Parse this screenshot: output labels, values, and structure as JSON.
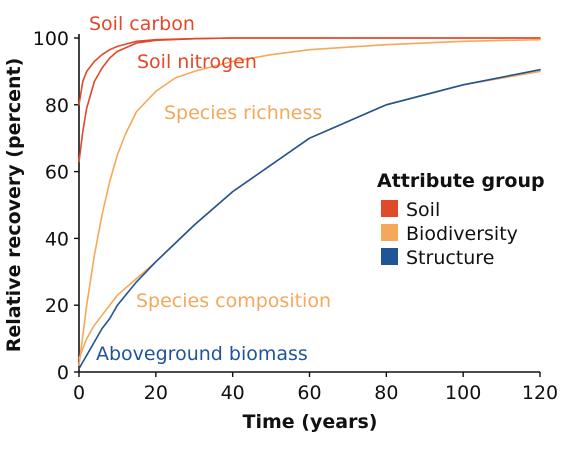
{
  "chart_data": {
    "type": "line",
    "xlabel": "Time (years)",
    "ylabel": "Relative recovery (percent)",
    "xlim": [
      0,
      120
    ],
    "ylim": [
      0,
      100
    ],
    "xticks": [
      0,
      20,
      40,
      60,
      80,
      100,
      120
    ],
    "yticks": [
      0,
      20,
      40,
      60,
      80,
      100
    ],
    "grid": false,
    "legend": {
      "title": "Attribute group",
      "placement": "right",
      "entries": [
        {
          "label": "Soil",
          "color": "#e0492a"
        },
        {
          "label": "Biodiversity",
          "color": "#f5a85b"
        },
        {
          "label": "Structure",
          "color": "#1f5596"
        }
      ]
    },
    "series": [
      {
        "name": "Soil carbon",
        "group": "Soil",
        "color": "#e0492a",
        "x": [
          0,
          1,
          2,
          4,
          6,
          8,
          10,
          15,
          20,
          30,
          40,
          60,
          80,
          100,
          120
        ],
        "y": [
          80,
          87,
          90,
          93,
          95,
          96.5,
          97.5,
          99,
          99.5,
          99.8,
          100,
          100,
          100,
          100,
          100
        ]
      },
      {
        "name": "Soil nitrogen",
        "group": "Soil",
        "color": "#e0492a",
        "x": [
          0,
          1,
          2,
          4,
          6,
          8,
          10,
          15,
          20,
          30,
          40,
          60,
          80,
          100,
          120
        ],
        "y": [
          63,
          72,
          79,
          87,
          91,
          94,
          96,
          98.5,
          99.3,
          99.8,
          100,
          100,
          100,
          100,
          100
        ]
      },
      {
        "name": "Species richness",
        "group": "Biodiversity",
        "color": "#f5a85b",
        "x": [
          0,
          2,
          4,
          6,
          8,
          10,
          12,
          15,
          20,
          25,
          30,
          40,
          50,
          60,
          80,
          100,
          120
        ],
        "y": [
          2,
          20,
          35,
          47,
          57,
          65,
          71,
          78,
          84,
          88,
          90,
          93,
          95,
          96.5,
          98,
          99,
          99.5
        ]
      },
      {
        "name": "Species composition",
        "group": "Biodiversity",
        "color": "#f5a85b",
        "x": [
          0,
          1,
          2,
          4,
          6,
          8,
          10,
          15,
          20,
          30,
          40,
          60,
          80,
          100,
          120
        ],
        "y": [
          4,
          7,
          10,
          14,
          17,
          20,
          23,
          28,
          33,
          44,
          54,
          70,
          80,
          86,
          90
        ]
      },
      {
        "name": "Aboveground biomass",
        "group": "Structure",
        "color": "#1f5596",
        "x": [
          0,
          1,
          2,
          4,
          6,
          8,
          10,
          15,
          20,
          30,
          40,
          60,
          80,
          100,
          120
        ],
        "y": [
          1,
          3,
          5,
          9,
          13,
          16,
          20,
          27,
          33,
          44,
          54,
          70,
          80,
          86,
          90.5
        ]
      }
    ],
    "annotations": [
      {
        "text": "Soil carbon",
        "color": "#e0492a"
      },
      {
        "text": "Soil nitrogen",
        "color": "#e0492a"
      },
      {
        "text": "Species richness",
        "color": "#f5a85b"
      },
      {
        "text": "Species composition",
        "color": "#f5a85b"
      },
      {
        "text": "Aboveground biomass",
        "color": "#1f5596"
      }
    ]
  }
}
